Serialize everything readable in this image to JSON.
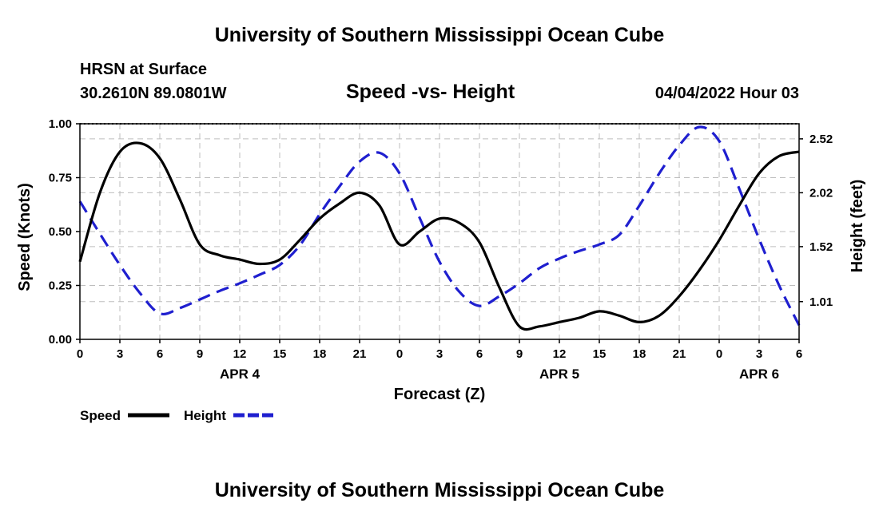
{
  "header": {
    "title": "University of Southern Mississippi Ocean Cube",
    "station": "HRSN at Surface",
    "coords": "30.2610N  89.0801W",
    "datetime": "04/04/2022 Hour 03"
  },
  "footer": {
    "title": "University of Southern Mississippi Ocean Cube"
  },
  "chart_data": {
    "type": "line",
    "title": "Speed -vs- Height",
    "xlabel": "Forecast (Z)",
    "ylabel": "Speed (Knots)",
    "y2label": "Height (feet)",
    "xlim": [
      0,
      54
    ],
    "ylim": [
      0,
      1
    ],
    "y2lim": [
      0.66,
      2.66
    ],
    "grid": true,
    "x_ticks": [
      0,
      3,
      6,
      9,
      12,
      15,
      18,
      21,
      24,
      27,
      30,
      33,
      36,
      39,
      42,
      45,
      48,
      51,
      54
    ],
    "x_tick_labels": [
      "0",
      "3",
      "6",
      "9",
      "12",
      "15",
      "18",
      "21",
      "0",
      "3",
      "6",
      "9",
      "12",
      "15",
      "18",
      "21",
      "0",
      "3",
      "6"
    ],
    "date_labels": [
      {
        "x": 12,
        "label": "APR 4"
      },
      {
        "x": 36,
        "label": "APR 5"
      },
      {
        "x": 51,
        "label": "APR 6"
      }
    ],
    "y_ticks": [
      0,
      0.25,
      0.5,
      0.75,
      1.0
    ],
    "y_tick_labels": [
      "0.00",
      "0.25",
      "0.50",
      "0.75",
      "1.00"
    ],
    "y2_ticks": [
      1.01,
      1.52,
      2.02,
      2.52
    ],
    "y2_tick_labels": [
      "1.01",
      "1.52",
      "2.02",
      "2.52"
    ],
    "series": [
      {
        "name": "Speed",
        "axis": "left",
        "color": "#000000",
        "dash": "solid",
        "x": [
          0,
          1.5,
          3,
          4.5,
          6,
          7.5,
          9,
          10.5,
          12,
          13.5,
          15,
          16.5,
          18,
          19.5,
          21,
          22.5,
          24,
          25.5,
          27,
          28.5,
          30,
          31.5,
          33,
          34.5,
          36,
          37.5,
          39,
          40.5,
          42,
          43.5,
          45,
          46.5,
          48,
          49.5,
          51,
          52.5,
          54
        ],
        "values": [
          0.36,
          0.68,
          0.87,
          0.91,
          0.84,
          0.65,
          0.44,
          0.39,
          0.37,
          0.35,
          0.37,
          0.46,
          0.56,
          0.63,
          0.68,
          0.62,
          0.44,
          0.5,
          0.56,
          0.54,
          0.45,
          0.24,
          0.06,
          0.06,
          0.08,
          0.1,
          0.13,
          0.11,
          0.08,
          0.11,
          0.2,
          0.32,
          0.46,
          0.62,
          0.77,
          0.85,
          0.87
        ]
      },
      {
        "name": "Height",
        "axis": "right",
        "color": "#1f1fcf",
        "dash": "dashed",
        "x": [
          0,
          1.5,
          3,
          4.5,
          6,
          7.5,
          9,
          10.5,
          12,
          13.5,
          15,
          16.5,
          18,
          19.5,
          21,
          22.5,
          24,
          25.5,
          27,
          28.5,
          30,
          31.5,
          33,
          34.5,
          36,
          37.5,
          39,
          40.5,
          42,
          43.5,
          45,
          46.5,
          48,
          49.5,
          51,
          52.5,
          54
        ],
        "values": [
          1.94,
          1.64,
          1.35,
          1.09,
          0.9,
          0.95,
          1.03,
          1.11,
          1.18,
          1.26,
          1.35,
          1.53,
          1.82,
          2.08,
          2.31,
          2.39,
          2.2,
          1.79,
          1.38,
          1.1,
          0.97,
          1.06,
          1.18,
          1.32,
          1.41,
          1.48,
          1.54,
          1.63,
          1.9,
          2.2,
          2.46,
          2.63,
          2.5,
          2.06,
          1.59,
          1.16,
          0.79
        ]
      }
    ],
    "legend": [
      {
        "label": "Speed",
        "color": "#000000",
        "dash": "solid"
      },
      {
        "label": "Height",
        "color": "#1f1fcf",
        "dash": "dashed"
      }
    ]
  }
}
